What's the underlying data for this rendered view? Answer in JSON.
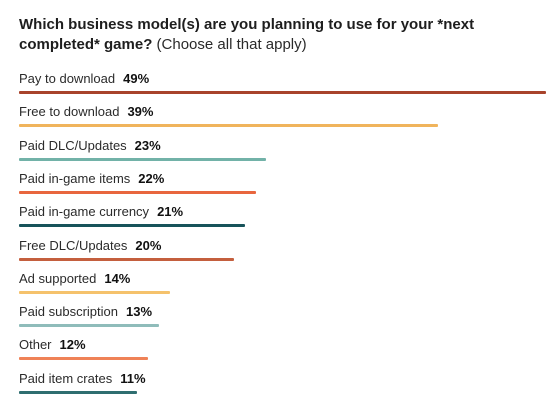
{
  "chart_data": {
    "type": "bar",
    "orientation": "horizontal",
    "title": "Which business model(s) are you planning to use for your *next completed* game?",
    "subtitle": "(Choose all that apply)",
    "categories": [
      "Pay to download",
      "Free to download",
      "Paid DLC/Updates",
      "Paid in-game items",
      "Paid in-game currency",
      "Free DLC/Updates",
      "Ad supported",
      "Paid subscription",
      "Other",
      "Paid item crates"
    ],
    "values": [
      49,
      39,
      23,
      22,
      21,
      20,
      14,
      13,
      12,
      11
    ],
    "value_labels": [
      "49%",
      "39%",
      "23%",
      "22%",
      "21%",
      "20%",
      "14%",
      "13%",
      "12%",
      "11%"
    ],
    "bar_colors": [
      "#a8432b",
      "#f0b45c",
      "#72b2a8",
      "#e8663e",
      "#17535a",
      "#c45f3e",
      "#f5c26c",
      "#8fbcba",
      "#ef8257",
      "#2f6e70"
    ],
    "xlim": [
      0,
      49
    ],
    "grid": false,
    "legend": false
  }
}
